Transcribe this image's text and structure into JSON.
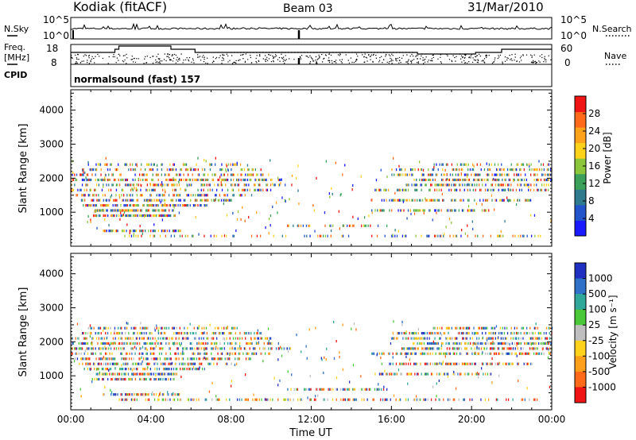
{
  "header": {
    "station": "Kodiak (fitACF)",
    "beam": "Beam 03",
    "date": "31/Mar/2010"
  },
  "nsky_panel": {
    "left_label": "N.Sky",
    "right_label": "N.Search",
    "left_ticks": [
      "10^5",
      "10^0"
    ],
    "right_ticks": [
      "10^5",
      "10^0"
    ]
  },
  "freq_panel": {
    "left_label_1": "Freq.",
    "left_label_2": "[MHz]",
    "right_label": "Nave",
    "left_ticks": [
      "18",
      "8"
    ],
    "right_ticks": [
      "60",
      "0"
    ],
    "cpid_label": "CPID",
    "program": "normalsound (fast) 157"
  },
  "chart_data": [
    {
      "type": "heatmap",
      "quantity": "power",
      "xlabel": "Time UT",
      "ylabel": "Slant Range [km]",
      "xlim": [
        0,
        24
      ],
      "ylim": [
        0,
        4600
      ],
      "x_ticks": [
        "00:00",
        "04:00",
        "08:00",
        "12:00",
        "16:00",
        "20:00",
        "00:00"
      ],
      "y_ticks": [
        1000,
        2000,
        3000,
        4000
      ],
      "colorbar": {
        "label": "Power [dB]",
        "ticks": [
          4,
          8,
          12,
          16,
          20,
          24,
          28
        ],
        "range": [
          0,
          32
        ],
        "colors": [
          "#1a1aff",
          "#2255cc",
          "#2f7a8c",
          "#3aa05a",
          "#8cc63a",
          "#ffd21a",
          "#ffa31a",
          "#ff6a1a",
          "#f01414"
        ]
      },
      "gates": [
        {
          "range": 300,
          "t0": 2.4,
          "t1": 23.5,
          "level": 0.22
        },
        {
          "range": 450,
          "t0": 1.6,
          "t1": 5.5,
          "level": 0.55
        },
        {
          "range": 600,
          "t0": 10.8,
          "t1": 15.8,
          "level": 0.45
        },
        {
          "range": 900,
          "t0": 1.0,
          "t1": 5.2,
          "level": 0.7
        },
        {
          "range": 1050,
          "t0": 1.2,
          "t1": 5.3,
          "level": 0.78
        },
        {
          "range": 1200,
          "t0": 0.6,
          "t1": 6.8,
          "level": 0.62
        },
        {
          "range": 1350,
          "t0": 0.4,
          "t1": 8.0,
          "level": 0.55
        },
        {
          "range": 1500,
          "t0": 0.2,
          "t1": 9.0,
          "level": 0.45
        },
        {
          "range": 1650,
          "t0": 0.0,
          "t1": 10.0,
          "level": 0.4
        },
        {
          "range": 1800,
          "t0": 0.0,
          "t1": 11.0,
          "level": 0.42
        },
        {
          "range": 1950,
          "t0": 0.0,
          "t1": 10.5,
          "level": 0.48
        },
        {
          "range": 2100,
          "t0": 0.0,
          "t1": 10.0,
          "level": 0.45
        },
        {
          "range": 2250,
          "t0": 0.5,
          "t1": 9.5,
          "level": 0.4
        },
        {
          "range": 2400,
          "t0": 0.8,
          "t1": 8.5,
          "level": 0.35
        },
        {
          "range": 1650,
          "t0": 15.0,
          "t1": 24.0,
          "level": 0.45
        },
        {
          "range": 1800,
          "t0": 16.5,
          "t1": 24.0,
          "level": 0.55
        },
        {
          "range": 1950,
          "t0": 17.0,
          "t1": 24.0,
          "level": 0.6
        },
        {
          "range": 2100,
          "t0": 16.0,
          "t1": 24.0,
          "level": 0.5
        },
        {
          "range": 2250,
          "t0": 16.0,
          "t1": 24.0,
          "level": 0.42
        },
        {
          "range": 2400,
          "t0": 18.0,
          "t1": 24.0,
          "level": 0.35
        },
        {
          "range": 1350,
          "t0": 15.5,
          "t1": 23.0,
          "level": 0.5
        },
        {
          "range": 1050,
          "t0": 15.0,
          "t1": 21.0,
          "level": 0.5
        }
      ]
    },
    {
      "type": "heatmap",
      "quantity": "velocity",
      "xlabel": "Time UT",
      "ylabel": "Slant Range [km]",
      "xlim": [
        0,
        24
      ],
      "ylim": [
        0,
        4600
      ],
      "x_ticks": [
        "00:00",
        "04:00",
        "08:00",
        "12:00",
        "16:00",
        "20:00",
        "00:00"
      ],
      "y_ticks": [
        1000,
        2000,
        3000,
        4000
      ],
      "colorbar": {
        "label": "Velocity [m s⁻¹]",
        "ticks": [
          "1000",
          "500",
          "100",
          "25",
          "-25",
          "-100",
          "-500",
          "-1000"
        ],
        "colors": [
          "#2030c0",
          "#2f70c8",
          "#2fa89a",
          "#4bc83a",
          "#bfbfbf",
          "#ffd21a",
          "#ffa01a",
          "#ff6a1a",
          "#f01414"
        ]
      },
      "gates": [
        {
          "range": 300,
          "t0": 2.4,
          "t1": 23.5,
          "level": 0.4
        },
        {
          "range": 450,
          "t0": 1.6,
          "t1": 5.5,
          "level": 0.6
        },
        {
          "range": 600,
          "t0": 10.8,
          "t1": 15.8,
          "level": 0.5
        },
        {
          "range": 900,
          "t0": 1.0,
          "t1": 5.2,
          "level": 0.65
        },
        {
          "range": 1050,
          "t0": 1.2,
          "t1": 5.3,
          "level": 0.7
        },
        {
          "range": 1200,
          "t0": 0.6,
          "t1": 6.8,
          "level": 0.6
        },
        {
          "range": 1350,
          "t0": 0.4,
          "t1": 8.0,
          "level": 0.55
        },
        {
          "range": 1500,
          "t0": 0.2,
          "t1": 9.0,
          "level": 0.55
        },
        {
          "range": 1650,
          "t0": 0.0,
          "t1": 10.0,
          "level": 0.5
        },
        {
          "range": 1800,
          "t0": 0.0,
          "t1": 11.0,
          "level": 0.55
        },
        {
          "range": 1950,
          "t0": 0.0,
          "t1": 10.5,
          "level": 0.55
        },
        {
          "range": 2100,
          "t0": 0.0,
          "t1": 10.0,
          "level": 0.5
        },
        {
          "range": 2250,
          "t0": 0.5,
          "t1": 9.5,
          "level": 0.5
        },
        {
          "range": 2400,
          "t0": 0.8,
          "t1": 8.5,
          "level": 0.5
        },
        {
          "range": 1650,
          "t0": 15.0,
          "t1": 24.0,
          "level": 0.55
        },
        {
          "range": 1800,
          "t0": 16.5,
          "t1": 24.0,
          "level": 0.6
        },
        {
          "range": 1950,
          "t0": 17.0,
          "t1": 24.0,
          "level": 0.62
        },
        {
          "range": 2100,
          "t0": 16.0,
          "t1": 24.0,
          "level": 0.55
        },
        {
          "range": 2250,
          "t0": 16.0,
          "t1": 24.0,
          "level": 0.5
        },
        {
          "range": 2400,
          "t0": 18.0,
          "t1": 24.0,
          "level": 0.5
        },
        {
          "range": 1350,
          "t0": 15.5,
          "t1": 23.0,
          "level": 0.55
        },
        {
          "range": 1050,
          "t0": 15.0,
          "t1": 21.0,
          "level": 0.55
        }
      ]
    }
  ]
}
